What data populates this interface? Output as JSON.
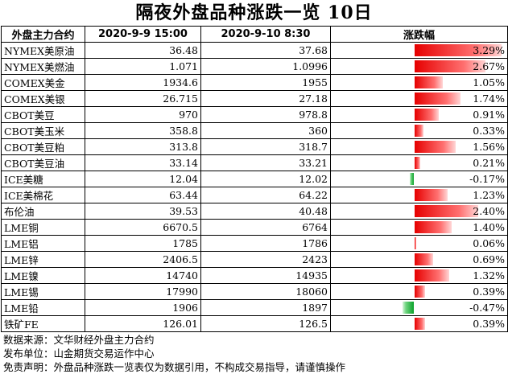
{
  "title": "隔夜外盘品种涨跌一览 10日",
  "headers": {
    "name": "外盘主力合约",
    "prev": "2020-9-9 15:00",
    "curr": "2020-9-10 8:30",
    "change": "涨跌幅"
  },
  "rows": [
    {
      "name": "NYMEX美原油",
      "prev": "36.48",
      "curr": "37.68",
      "change": "3.29%",
      "pct": 3.29
    },
    {
      "name": "NYMEX美燃油",
      "prev": "1.071",
      "curr": "1.0996",
      "change": "2.67%",
      "pct": 2.67
    },
    {
      "name": "COMEX美金",
      "prev": "1934.6",
      "curr": "1955",
      "change": "1.05%",
      "pct": 1.05
    },
    {
      "name": "COMEX美银",
      "prev": "26.715",
      "curr": "27.18",
      "change": "1.74%",
      "pct": 1.74
    },
    {
      "name": "CBOT美豆",
      "prev": "970",
      "curr": "978.8",
      "change": "0.91%",
      "pct": 0.91
    },
    {
      "name": "CBOT美玉米",
      "prev": "358.8",
      "curr": "360",
      "change": "0.33%",
      "pct": 0.33
    },
    {
      "name": "CBOT美豆粕",
      "prev": "313.8",
      "curr": "318.7",
      "change": "1.56%",
      "pct": 1.56
    },
    {
      "name": "CBOT美豆油",
      "prev": "33.14",
      "curr": "33.21",
      "change": "0.21%",
      "pct": 0.21
    },
    {
      "name": "ICE美糖",
      "prev": "12.04",
      "curr": "12.02",
      "change": "-0.17%",
      "pct": -0.17
    },
    {
      "name": "ICE美棉花",
      "prev": "63.44",
      "curr": "64.22",
      "change": "1.23%",
      "pct": 1.23
    },
    {
      "name": "布伦油",
      "prev": "39.53",
      "curr": "40.48",
      "change": "2.40%",
      "pct": 2.4
    },
    {
      "name": "LME铜",
      "prev": "6670.5",
      "curr": "6764",
      "change": "1.40%",
      "pct": 1.4
    },
    {
      "name": "LME铝",
      "prev": "1785",
      "curr": "1786",
      "change": "0.06%",
      "pct": 0.06
    },
    {
      "name": "LME锌",
      "prev": "2406.5",
      "curr": "2423",
      "change": "0.69%",
      "pct": 0.69
    },
    {
      "name": "LME镍",
      "prev": "14740",
      "curr": "14935",
      "change": "1.32%",
      "pct": 1.32
    },
    {
      "name": "LME锡",
      "prev": "17990",
      "curr": "18060",
      "change": "0.39%",
      "pct": 0.39
    },
    {
      "name": "LME铅",
      "prev": "1906",
      "curr": "1897",
      "change": "-0.47%",
      "pct": -0.47
    },
    {
      "name": "铁矿FE",
      "prev": "126.01",
      "curr": "126.5",
      "change": "0.39%",
      "pct": 0.39
    }
  ],
  "footer": {
    "source": "数据来源：文华财经外盘主力合约",
    "publisher": "发布单位：山金期货交易运作中心",
    "disclaimer": "免责声明：外盘品种涨跌一览表仅为数据引用，不构成交易指导，请谨慎操作"
  },
  "colors": {
    "positive": "#e60000",
    "negative": "#0aa12a"
  }
}
